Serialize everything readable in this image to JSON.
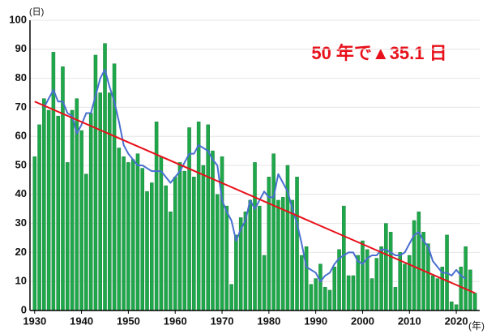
{
  "chart_data": {
    "type": "bar",
    "x": [
      1930,
      1931,
      1932,
      1933,
      1934,
      1935,
      1936,
      1937,
      1938,
      1939,
      1940,
      1941,
      1942,
      1943,
      1944,
      1945,
      1946,
      1947,
      1948,
      1949,
      1950,
      1951,
      1952,
      1953,
      1954,
      1955,
      1956,
      1957,
      1958,
      1959,
      1960,
      1961,
      1962,
      1963,
      1964,
      1965,
      1966,
      1967,
      1968,
      1969,
      1970,
      1971,
      1972,
      1973,
      1974,
      1975,
      1976,
      1977,
      1978,
      1979,
      1980,
      1981,
      1982,
      1983,
      1984,
      1985,
      1986,
      1987,
      1988,
      1989,
      1990,
      1991,
      1992,
      1993,
      1994,
      1995,
      1996,
      1997,
      1998,
      1999,
      2000,
      2001,
      2002,
      2003,
      2004,
      2005,
      2006,
      2007,
      2008,
      2009,
      2010,
      2011,
      2012,
      2013,
      2014,
      2015,
      2016,
      2017,
      2018,
      2019,
      2020,
      2021,
      2022,
      2023,
      2024
    ],
    "values": [
      53,
      64,
      73,
      69,
      89,
      67,
      84,
      51,
      69,
      73,
      62,
      47,
      68,
      88,
      75,
      92,
      75,
      85,
      56,
      53,
      51,
      52,
      54,
      49,
      41,
      44,
      65,
      53,
      43,
      34,
      46,
      51,
      48,
      63,
      46,
      65,
      50,
      64,
      55,
      40,
      53,
      36,
      9,
      26,
      32,
      34,
      38,
      51,
      36,
      19,
      46,
      54,
      38,
      39,
      50,
      38,
      46,
      19,
      22,
      9,
      11,
      16,
      8,
      7,
      15,
      21,
      36,
      12,
      12,
      19,
      24,
      21,
      11,
      18,
      22,
      30,
      27,
      8,
      20,
      16,
      19,
      31,
      34,
      27,
      23,
      12,
      11,
      15,
      26,
      3,
      2,
      15,
      22,
      14,
      6
    ],
    "color": "#1fa84a",
    "moving_average": {
      "color": "#4a6fd0",
      "values": [
        null,
        null,
        70,
        73,
        76,
        72,
        72,
        68,
        67,
        61,
        64,
        68,
        68,
        74,
        80,
        83,
        77,
        72,
        65,
        57,
        54,
        52,
        50,
        50,
        49,
        48,
        48,
        48,
        46,
        44,
        46,
        48,
        51,
        54,
        54,
        57,
        56,
        55,
        52,
        50,
        38,
        34,
        31,
        24,
        28,
        31,
        38,
        35,
        38,
        41,
        39,
        39,
        47,
        44,
        41,
        35,
        30,
        23,
        15,
        14,
        13,
        10,
        12,
        13,
        16,
        18,
        19,
        20,
        20,
        17,
        16,
        18,
        19,
        19,
        21,
        21,
        20,
        19,
        19,
        20,
        23,
        26,
        27,
        24,
        22,
        17,
        15,
        13,
        13,
        12,
        14,
        12,
        11,
        null,
        null
      ]
    },
    "trend": {
      "color": "#e8101a",
      "x": [
        1930,
        2024
      ],
      "values": [
        72,
        6
      ]
    },
    "xlim": [
      1929,
      2025
    ],
    "ylim": [
      0,
      100
    ],
    "xticks": [
      1930,
      1940,
      1950,
      1960,
      1970,
      1980,
      1990,
      2000,
      2010,
      2020
    ],
    "yticks": [
      0,
      10,
      20,
      30,
      40,
      50,
      60,
      70,
      80,
      90,
      100
    ],
    "y_unit": "(日)",
    "x_unit": "(年)",
    "annotation": "50 年で▲35.1 日",
    "grid": true
  }
}
